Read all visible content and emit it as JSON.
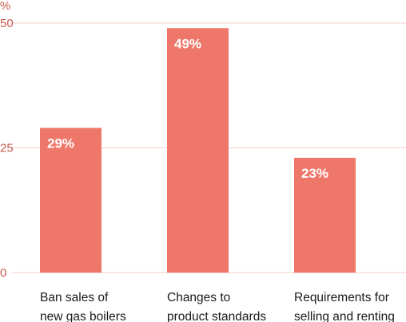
{
  "chart_data": {
    "type": "bar",
    "title": "",
    "xlabel": "",
    "ylabel": "%",
    "ylim": [
      0,
      50
    ],
    "yticks": [
      0,
      25,
      50
    ],
    "grid": true,
    "categories": [
      [
        "Ban sales of",
        "new gas boilers"
      ],
      [
        "Changes to",
        "product standards"
      ],
      [
        "Requirements for",
        "selling and renting"
      ]
    ],
    "values": [
      29,
      49,
      23
    ],
    "value_labels": [
      "29%",
      "49%",
      "23%"
    ]
  },
  "colors": {
    "bar": "#ef7769",
    "grid": "#f6cfc8",
    "axis_text": "#c85a4c",
    "category_text": "#1a1a1a",
    "value_text": "#ffffff"
  }
}
